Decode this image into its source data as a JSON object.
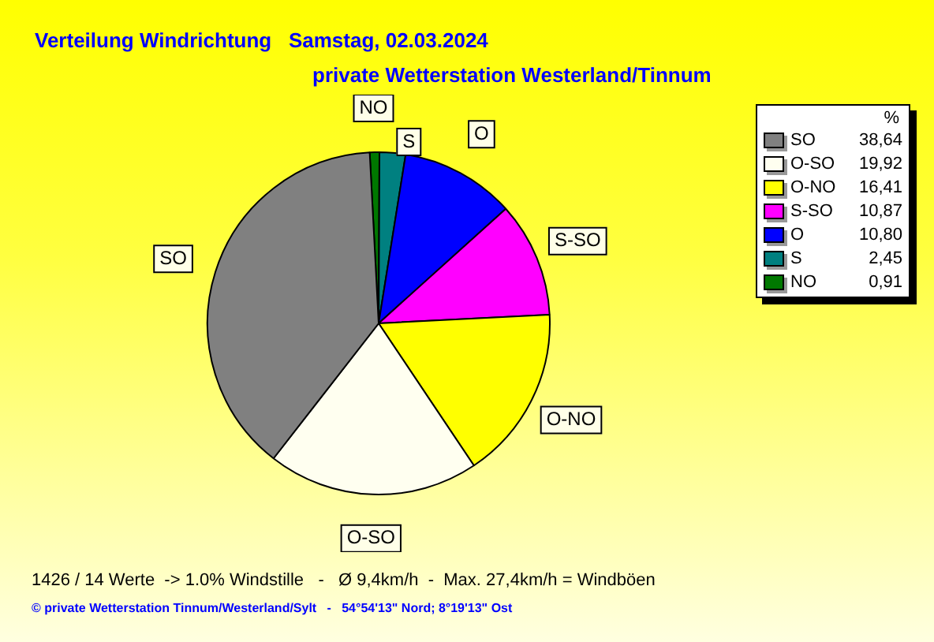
{
  "chart_data": {
    "type": "pie",
    "title": "Verteilung Windrichtung   Samstag, 02.03.2024",
    "subtitle": "private Wetterstation Westerland/Tinnum",
    "categories": [
      "SO",
      "O-SO",
      "O-NO",
      "S-SO",
      "O",
      "S",
      "NO"
    ],
    "values": [
      38.64,
      19.92,
      16.41,
      10.87,
      10.8,
      2.45,
      0.91
    ],
    "value_labels": [
      "38,64",
      "19,92",
      "16,41",
      "10,87",
      "10,80",
      "2,45",
      "0,91"
    ],
    "colors": [
      "#808080",
      "#fffff0",
      "#ffff00",
      "#ff00ff",
      "#0000ff",
      "#008080",
      "#007800"
    ],
    "legend": "top right",
    "legend_title": "%",
    "annotations": [
      "1426 / 14 Werte  -> 1.0% Windstille   -   Ø 9,4km/h  -  Max. 27,4km/h = Windböen",
      "© private Wetterstation Tinnum/Westerland/Sylt   -   54°54'13\" Nord; 8°19'13\" Ost"
    ]
  }
}
